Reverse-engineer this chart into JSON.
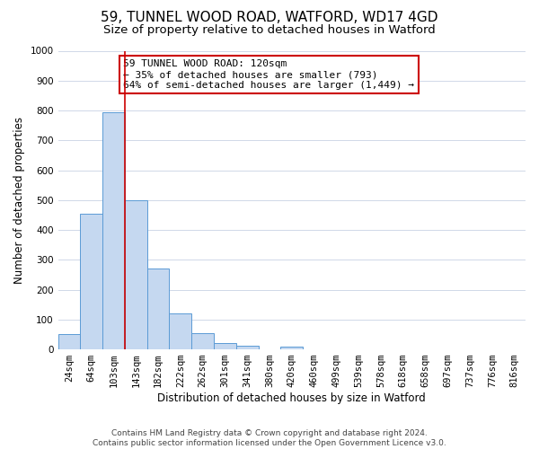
{
  "title": "59, TUNNEL WOOD ROAD, WATFORD, WD17 4GD",
  "subtitle": "Size of property relative to detached houses in Watford",
  "xlabel": "Distribution of detached houses by size in Watford",
  "ylabel": "Number of detached properties",
  "bar_labels": [
    "24sqm",
    "64sqm",
    "103sqm",
    "143sqm",
    "182sqm",
    "222sqm",
    "262sqm",
    "301sqm",
    "341sqm",
    "380sqm",
    "420sqm",
    "460sqm",
    "499sqm",
    "539sqm",
    "578sqm",
    "618sqm",
    "658sqm",
    "697sqm",
    "737sqm",
    "776sqm",
    "816sqm"
  ],
  "bar_heights": [
    50,
    455,
    793,
    500,
    270,
    120,
    55,
    20,
    12,
    0,
    10,
    0,
    0,
    0,
    0,
    0,
    0,
    0,
    0,
    0,
    0
  ],
  "bar_color": "#c5d8f0",
  "bar_edge_color": "#5b9bd5",
  "ylim": [
    0,
    1000
  ],
  "yticks": [
    0,
    100,
    200,
    300,
    400,
    500,
    600,
    700,
    800,
    900,
    1000
  ],
  "vline_color": "#cc0000",
  "annotation_title": "59 TUNNEL WOOD ROAD: 120sqm",
  "annotation_line1": "← 35% of detached houses are smaller (793)",
  "annotation_line2": "64% of semi-detached houses are larger (1,449) →",
  "annotation_box_color": "#ffffff",
  "annotation_box_edge": "#cc0000",
  "footer1": "Contains HM Land Registry data © Crown copyright and database right 2024.",
  "footer2": "Contains public sector information licensed under the Open Government Licence v3.0.",
  "grid_color": "#d0d8e8",
  "background_color": "#ffffff",
  "title_fontsize": 11,
  "subtitle_fontsize": 9.5,
  "axis_label_fontsize": 8.5,
  "tick_fontsize": 7.5,
  "annotation_fontsize": 8,
  "footer_fontsize": 6.5
}
